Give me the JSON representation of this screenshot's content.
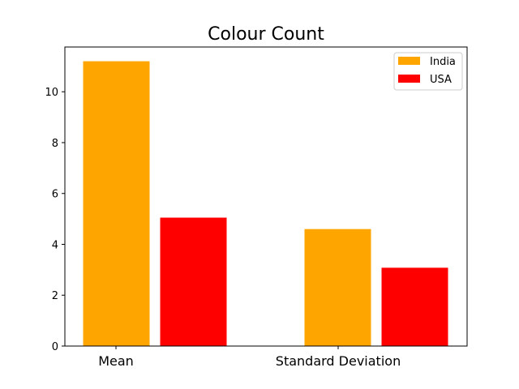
{
  "chart_data": {
    "type": "bar",
    "title": "Colour Count",
    "xlabel": "",
    "ylabel": "",
    "categories": [
      "Mean",
      "Standard Deviation"
    ],
    "series": [
      {
        "name": "India",
        "values": [
          11.2,
          4.6
        ],
        "color": "#FFA500"
      },
      {
        "name": "USA",
        "values": [
          5.05,
          3.08
        ],
        "color": "#FF0000"
      }
    ],
    "ylim": [
      0,
      11.76
    ],
    "yticks": [
      0,
      2,
      4,
      6,
      8,
      10
    ],
    "grid": false,
    "legend_position": "top-right"
  }
}
